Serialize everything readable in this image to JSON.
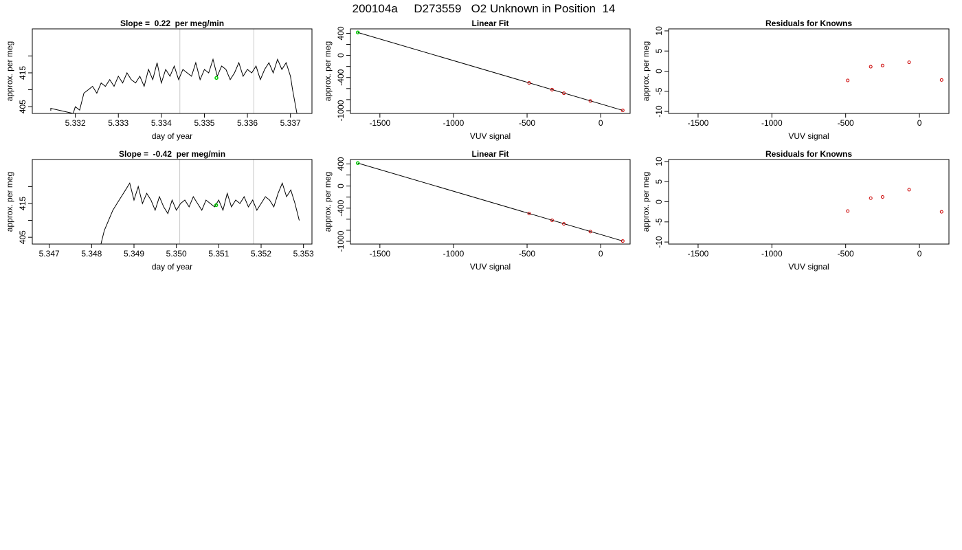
{
  "title": "200104a     D273559   O2 Unknown in Position  14",
  "colors": {
    "series_line": "#000000",
    "known_points": "#cc0000",
    "unknown_point": "#00cc00",
    "window_lines": "#c8c8c8",
    "fit_line": "#000000"
  },
  "chart_data": [
    {
      "id": "r1-timeseries",
      "type": "line",
      "title": "Slope =  0.22  per meg/min",
      "xlabel": "day of year",
      "ylabel": "approx. per meg",
      "xlim": [
        5.331,
        5.3375
      ],
      "ylim": [
        403,
        428
      ],
      "xticks": [
        5.332,
        5.333,
        5.334,
        5.335,
        5.336,
        5.337
      ],
      "xtick_labels": [
        "5.332",
        "5.333",
        "5.334",
        "5.335",
        "5.336",
        "5.337"
      ],
      "yticks": [
        405,
        410,
        415,
        420
      ],
      "ytick_labels": [
        "405",
        "",
        "415",
        ""
      ],
      "vlines": [
        5.33443,
        5.33615
      ],
      "unknown_point": {
        "x": 5.33528,
        "y": 413.5
      },
      "series": [
        {
          "x": [
            5.33143,
            5.33143,
            5.33195,
            5.332,
            5.3321,
            5.3322,
            5.3323,
            5.3324,
            5.3325,
            5.3326,
            5.3327,
            5.3328,
            5.3329,
            5.333,
            5.3331,
            5.3332,
            5.3333,
            5.3334,
            5.3335,
            5.3336,
            5.3337,
            5.3338,
            5.3339,
            5.334,
            5.3341,
            5.3342,
            5.3343,
            5.3344,
            5.3345,
            5.3346,
            5.3347,
            5.3348,
            5.3349,
            5.335,
            5.3351,
            5.3352,
            5.3353,
            5.3354,
            5.3355,
            5.3356,
            5.3357,
            5.3358,
            5.3359,
            5.336,
            5.3361,
            5.3362,
            5.3363,
            5.3364,
            5.3365,
            5.3366,
            5.3367,
            5.3368,
            5.3369,
            5.337,
            5.33705,
            5.33715
          ],
          "y": [
            403.8,
            404.5,
            403,
            405,
            404,
            409,
            410,
            411,
            409,
            412,
            411,
            413,
            411,
            414,
            412,
            415,
            413,
            412,
            414,
            411,
            416,
            413,
            418,
            412,
            416,
            414,
            417,
            413,
            416,
            415,
            414,
            418,
            413,
            416,
            415,
            419,
            414,
            417,
            416,
            413,
            415,
            418,
            414,
            416,
            415,
            417,
            413,
            416,
            418,
            415,
            419,
            416,
            418,
            414,
            410,
            403
          ]
        }
      ]
    },
    {
      "id": "r1-linearfit",
      "type": "scatter",
      "title": "Linear Fit",
      "xlabel": "VUV signal",
      "ylabel": "approx. per meg",
      "xlim": [
        -1700,
        200
      ],
      "ylim": [
        -1050,
        480
      ],
      "xticks": [
        -1500,
        -1000,
        -500,
        0
      ],
      "xtick_labels": [
        "-1500",
        "-1000",
        "-500",
        "0"
      ],
      "yticks": [
        400,
        200,
        0,
        -200,
        -400,
        -600,
        -800,
        -1000
      ],
      "ytick_labels": [
        "400",
        "",
        "0",
        "",
        "-400",
        "",
        "",
        "-1000"
      ],
      "fit_line": {
        "x": [
          -1650,
          150
        ],
        "y": [
          415,
          -995
        ]
      },
      "knowns": {
        "x": [
          -486,
          -330,
          -250,
          -70,
          150
        ],
        "y": [
          -498,
          -620,
          -685,
          -825,
          -995
        ]
      },
      "unknown": {
        "x": [
          -1650
        ],
        "y": [
          415
        ]
      }
    },
    {
      "id": "r1-residuals",
      "type": "scatter",
      "title": "Residuals for Knowns",
      "xlabel": "VUV signal",
      "ylabel": "approx. per meg",
      "xlim": [
        -1700,
        200
      ],
      "ylim": [
        -10.5,
        10.5
      ],
      "xticks": [
        -1500,
        -1000,
        -500,
        0
      ],
      "xtick_labels": [
        "-1500",
        "-1000",
        "-500",
        "0"
      ],
      "yticks": [
        10,
        5,
        0,
        -5,
        -10
      ],
      "ytick_labels": [
        "10",
        "5",
        "0",
        "-5",
        "-10"
      ],
      "points": {
        "x": [
          -486,
          -330,
          -250,
          -70,
          150
        ],
        "y": [
          -2.3,
          1.1,
          1.4,
          2.2,
          -2.2
        ]
      }
    },
    {
      "id": "r2-timeseries",
      "type": "line",
      "title": "Slope =  -0.42  per meg/min",
      "xlabel": "day of year",
      "ylabel": "approx. per meg",
      "xlim": [
        5.3466,
        5.3532
      ],
      "ylim": [
        403,
        428
      ],
      "xticks": [
        5.347,
        5.348,
        5.349,
        5.35,
        5.351,
        5.352,
        5.353
      ],
      "xtick_labels": [
        "5.347",
        "5.348",
        "5.349",
        "5.350",
        "5.351",
        "5.352",
        "5.353"
      ],
      "yticks": [
        405,
        410,
        415,
        420
      ],
      "ytick_labels": [
        "405",
        "",
        "415",
        ""
      ],
      "vlines": [
        5.35008,
        5.35182
      ],
      "unknown_point": {
        "x": 5.35094,
        "y": 414.5
      },
      "series": [
        {
          "x": [
            5.34822,
            5.3483,
            5.3484,
            5.3485,
            5.3486,
            5.3487,
            5.3488,
            5.3489,
            5.349,
            5.3491,
            5.3492,
            5.3493,
            5.3494,
            5.3495,
            5.3496,
            5.3497,
            5.3498,
            5.3499,
            5.35,
            5.3501,
            5.3502,
            5.3503,
            5.3504,
            5.3505,
            5.3506,
            5.3507,
            5.3508,
            5.3509,
            5.351,
            5.3511,
            5.3512,
            5.3513,
            5.3514,
            5.3515,
            5.3516,
            5.3517,
            5.3518,
            5.3519,
            5.352,
            5.3521,
            5.3522,
            5.3523,
            5.3524,
            5.3525,
            5.3526,
            5.3527,
            5.3528,
            5.3529
          ],
          "y": [
            403,
            407,
            410,
            413,
            415,
            417,
            419,
            421,
            416,
            420,
            415,
            418,
            416,
            413,
            417,
            414,
            412,
            416,
            413,
            415,
            416,
            414,
            417,
            415,
            413,
            416,
            415,
            414,
            416,
            413,
            418,
            414,
            416,
            415,
            417,
            414,
            416,
            413,
            415,
            417,
            416,
            414,
            418,
            421,
            417,
            419,
            415,
            410
          ]
        }
      ]
    },
    {
      "id": "r2-linearfit",
      "type": "scatter",
      "title": "Linear Fit",
      "xlabel": "VUV signal",
      "ylabel": "approx. per meg",
      "xlim": [
        -1700,
        200
      ],
      "ylim": [
        -1050,
        480
      ],
      "xticks": [
        -1500,
        -1000,
        -500,
        0
      ],
      "xtick_labels": [
        "-1500",
        "-1000",
        "-500",
        "0"
      ],
      "yticks": [
        400,
        200,
        0,
        -200,
        -400,
        -600,
        -800,
        -1000
      ],
      "ytick_labels": [
        "400",
        "",
        "0",
        "",
        "-400",
        "",
        "",
        "-1000"
      ],
      "fit_line": {
        "x": [
          -1650,
          150
        ],
        "y": [
          415,
          -995
        ]
      },
      "knowns": {
        "x": [
          -486,
          -330,
          -250,
          -70,
          150
        ],
        "y": [
          -498,
          -620,
          -685,
          -825,
          -995
        ]
      },
      "unknown": {
        "x": [
          -1650
        ],
        "y": [
          415
        ]
      }
    },
    {
      "id": "r2-residuals",
      "type": "scatter",
      "title": "Residuals for Knowns",
      "xlabel": "VUV signal",
      "ylabel": "approx. per meg",
      "xlim": [
        -1700,
        200
      ],
      "ylim": [
        -10.5,
        10.5
      ],
      "xticks": [
        -1500,
        -1000,
        -500,
        0
      ],
      "xtick_labels": [
        "-1500",
        "-1000",
        "-500",
        "0"
      ],
      "yticks": [
        10,
        5,
        0,
        -5,
        -10
      ],
      "ytick_labels": [
        "10",
        "5",
        "0",
        "-5",
        "-10"
      ],
      "points": {
        "x": [
          -486,
          -330,
          -250,
          -70,
          150
        ],
        "y": [
          -2.3,
          0.9,
          1.2,
          3.0,
          -2.5
        ]
      }
    }
  ]
}
